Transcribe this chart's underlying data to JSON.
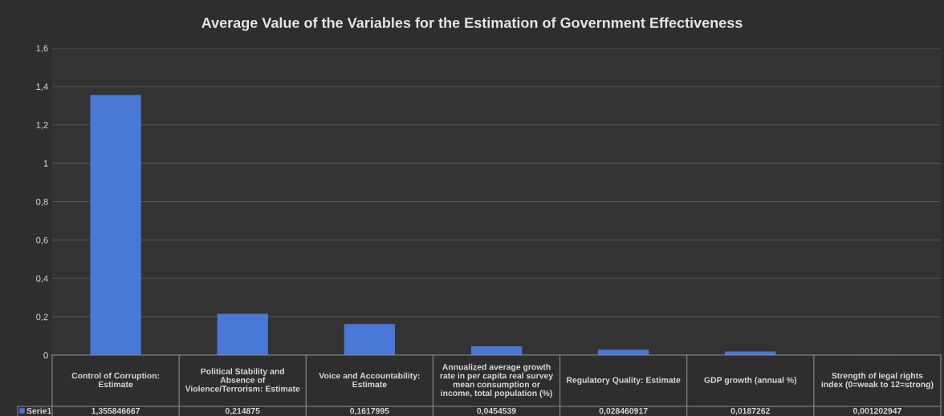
{
  "chart_data": {
    "type": "bar",
    "title": "Average Value of the Variables for the Estimation of Government Effectiveness",
    "categories": [
      "Control of Corruption: Estimate",
      "Political Stability and Absence of Violence/Terrorism: Estimate",
      "Voice and Accountability: Estimate",
      "Annualized average growth rate in per capita real survey mean consumption or income, total population (%)",
      "Regulatory Quality: Estimate",
      "GDP growth (annual %)",
      "Strength of legal rights index (0=weak to 12=strong)"
    ],
    "series": [
      {
        "name": "Serie1",
        "color": "#4a78d6",
        "values": [
          1.355846667,
          0.214875,
          0.1617995,
          0.0454539,
          0.028460917,
          0.0187262,
          0.001202947
        ],
        "value_labels": [
          "1,355846667",
          "0,214875",
          "0,1617995",
          "0,0454539",
          "0,028460917",
          "0,0187262",
          "0,001202947"
        ]
      }
    ],
    "ylim": [
      0,
      1.6
    ],
    "yticks": [
      0,
      {
        "value": 0.2,
        "label": "0,2"
      },
      {
        "value": 0.4,
        "label": "0,4"
      },
      {
        "value": 0.6,
        "label": "0,6"
      },
      {
        "value": 0.8,
        "label": "0,8"
      },
      1,
      {
        "value": 1.2,
        "label": "1,2"
      },
      {
        "value": 1.4,
        "label": "1,4"
      },
      {
        "value": 1.6,
        "label": "1,6"
      }
    ],
    "grid": "y"
  }
}
